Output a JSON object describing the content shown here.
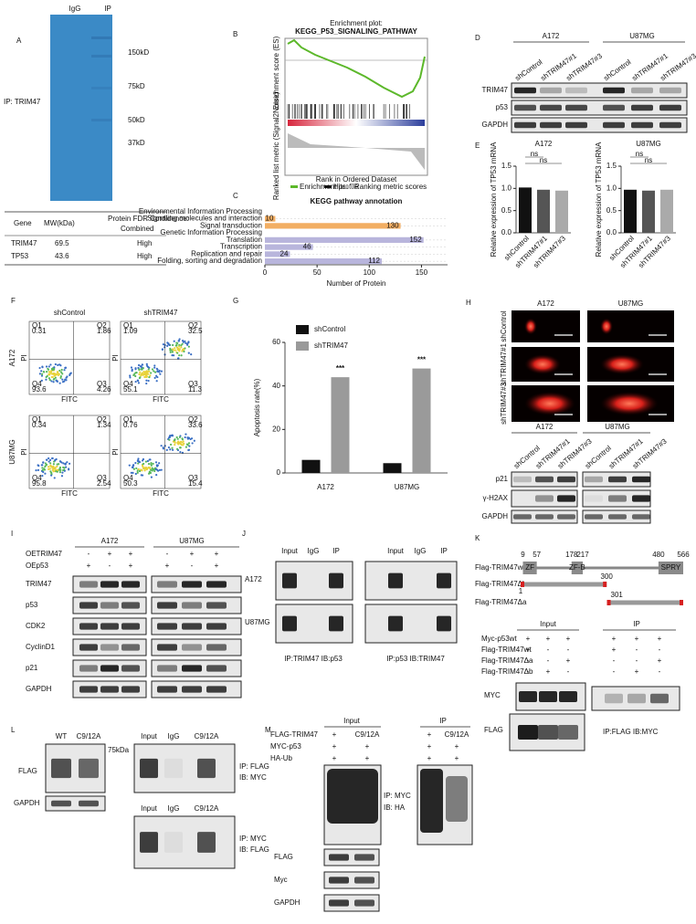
{
  "figure_labels": [
    "A",
    "B",
    "C",
    "D",
    "E",
    "F",
    "G",
    "H",
    "I",
    "J",
    "K",
    "L",
    "M"
  ],
  "panel_a": {
    "lanes": [
      "IgG",
      "IP"
    ],
    "side_label": "IP: TRIM47",
    "markers": [
      "150kD",
      "75kD",
      "50kD",
      "37kD"
    ],
    "table": {
      "header": [
        "Gene",
        "MW(kDa)",
        "Protein FDR Confidence:",
        "Combined"
      ],
      "rows": [
        [
          "TRIM47",
          "69.5",
          "High"
        ],
        [
          "TP53",
          "43.6",
          "High"
        ]
      ]
    }
  },
  "panel_b": {
    "title": [
      "Enrichment plot:",
      "KEGG_P53_SIGNALING_PATHWAY"
    ],
    "y_label_top": "Enrichment score (ES)",
    "y_label_bottom": "Ranked list metric (Signal2Noise)",
    "x_label": "Rank in Ordered Dataset",
    "legend": [
      "Enrichment profile",
      "Hits",
      "Ranking metric scores"
    ]
  },
  "panel_d": {
    "groups": [
      "A172",
      "U87MG"
    ],
    "lanes": [
      "shControl",
      "shTRIM47#1",
      "shTRIM47#3",
      "shControl",
      "shTRIM47#1",
      "shTRIM47#3"
    ],
    "rows": [
      "TRIM47",
      "p53",
      "GAPDH"
    ]
  },
  "panel_f": {
    "columns": [
      "shControl",
      "shTRIM47"
    ],
    "rows": [
      "A172",
      "U87MG"
    ],
    "x_label": "FITC",
    "y_label": "PI",
    "quadrant_names": [
      "Q1",
      "Q2",
      "Q3",
      "Q4"
    ],
    "plots": [
      [
        [
          "0.31",
          "1.86",
          "4.26",
          "93.6"
        ],
        [
          "1.09",
          "32.5",
          "11.3",
          "55.1"
        ]
      ],
      [
        [
          "0.34",
          "1.34",
          "2.54",
          "95.8"
        ],
        [
          "0.76",
          "33.6",
          "15.4",
          "50.3"
        ]
      ]
    ]
  },
  "panel_h": {
    "columns": [
      "A172",
      "U87MG"
    ],
    "rows": [
      "shControl",
      "shTRIM47#1",
      "shTRIM47#3"
    ],
    "groups": [
      "A172",
      "U87MG"
    ],
    "lanes": [
      "shControl",
      "shTRIM47#1",
      "shTRIM47#3",
      "shControl",
      "shTRIM47#1",
      "shTRIM47#3"
    ],
    "blot_rows": [
      "p21",
      "γ-H2AX",
      "GAPDH"
    ]
  },
  "panel_i": {
    "groups": [
      "A172",
      "U87MG"
    ],
    "conditions": [
      {
        "name": "OETRIM47",
        "signs": [
          "-",
          "+",
          "+",
          "-",
          "+",
          "+"
        ]
      },
      {
        "name": "OEp53",
        "signs": [
          "+",
          "-",
          "+",
          "+",
          "-",
          "+"
        ]
      }
    ],
    "rows": [
      "TRIM47",
      "p53",
      "CDK2",
      "CyclinD1",
      "p21",
      "GAPDH"
    ]
  },
  "panel_j": {
    "lanes": [
      "Input",
      "IgG",
      "IP"
    ],
    "rows": [
      "A172",
      "U87MG"
    ],
    "captions": [
      "IP:TRIM47 IB:p53",
      "IP:p53 IB:TRIM47"
    ]
  },
  "panel_k": {
    "constructs": [
      "Flag-TRIM47wt",
      "Flag-TRIM47Δb",
      "Flag-TRIM47Δa"
    ],
    "domains": [
      "ZF",
      "ZF-B",
      "SPRY"
    ],
    "positions": [
      9,
      57,
      178,
      217,
      480,
      566
    ],
    "db_positions": [
      1,
      300
    ],
    "da_positions": [
      301
    ],
    "groups": [
      "Input",
      "IP"
    ],
    "conditions": [
      {
        "name": "Myc-p53wt",
        "signs": [
          "+",
          "+",
          "+",
          "+",
          "+",
          "+"
        ]
      },
      {
        "name": "Flag-TRIM47wt",
        "signs": [
          "+",
          "-",
          "-",
          "+",
          "-",
          "-"
        ]
      },
      {
        "name": "Flag-TRIM47Δa",
        "signs": [
          "-",
          "-",
          "+",
          "-",
          "-",
          "+"
        ]
      },
      {
        "name": "Flag-TRIM47Δb",
        "signs": [
          "-",
          "+",
          "-",
          "-",
          "+",
          "-"
        ]
      }
    ],
    "blot_rows": [
      "MYC",
      "FLAG"
    ],
    "caption": "IP:FLAG IB:MYC"
  },
  "panel_l": {
    "lanes": [
      "WT",
      "C9/12A"
    ],
    "rows": [
      "FLAG",
      "GAPDH"
    ],
    "marker": "75kDa",
    "ip_lanes": [
      "Input",
      "IgG",
      "C9/12A"
    ],
    "ip_captions": [
      [
        "IP: FLAG",
        "IB: MYC"
      ],
      [
        "IP: MYC",
        "IB: FLAG"
      ]
    ]
  },
  "panel_m": {
    "groups": [
      "Input",
      "IP"
    ],
    "conditions": [
      {
        "name": "FLAG-TRIM47",
        "signs": [
          "+",
          "C9/12A",
          "+",
          "C9/12A"
        ]
      },
      {
        "name": "MYC-p53",
        "signs": [
          "+",
          "+",
          "+",
          "+"
        ]
      },
      {
        "name": "HA-Ub",
        "signs": [
          "+",
          "+",
          "+",
          "+"
        ]
      }
    ],
    "caption": [
      "IP: MYC",
      "IB: HA"
    ],
    "blot_rows": [
      "FLAG",
      "Myc",
      "GAPDH"
    ]
  },
  "chart_data": [
    {
      "type": "hbar",
      "title": "KEGG pathway annotation",
      "x_label": "Number of Protein",
      "xlim": [
        0,
        175
      ],
      "xticks": [
        0,
        50,
        100,
        150
      ],
      "groups": [
        {
          "name": "Environmental Information Processing",
          "color": "#f2ae63",
          "categories": [
            "Signaling molecules and interaction",
            "Signal transduction"
          ],
          "values": [
            10,
            130
          ]
        },
        {
          "name": "Genetic Information Processing",
          "color": "#b8b5dc",
          "categories": [
            "Translation",
            "Transcription",
            "Replication and repair",
            "Folding, sorting and degradation"
          ],
          "values": [
            152,
            46,
            24,
            112
          ]
        }
      ]
    },
    {
      "type": "bar",
      "title": "A172",
      "categories": [
        "shControl",
        "shTRIM47#1",
        "shTRIM47#3"
      ],
      "values": [
        1.02,
        0.97,
        0.95
      ],
      "colors": [
        "#111111",
        "#555555",
        "#aaaaaa"
      ],
      "y_label": "Relative expression of TP53 mRNA",
      "ylim": [
        0,
        1.5
      ],
      "yticks": [
        {
          "value": 0,
          "label": "0.0"
        },
        0.5,
        {
          "value": 1,
          "label": "1.0"
        },
        1.5
      ],
      "annotations": [
        "ns",
        "ns"
      ]
    },
    {
      "type": "bar",
      "title": "U87MG",
      "categories": [
        "shControl",
        "shTRIM47#1",
        "shTRIM47#3"
      ],
      "values": [
        0.97,
        0.95,
        0.97
      ],
      "colors": [
        "#111111",
        "#555555",
        "#aaaaaa"
      ],
      "y_label": "Relative expression of TP53 mRNA",
      "ylim": [
        0,
        1.5
      ],
      "yticks": [
        {
          "value": 0,
          "label": "0.0"
        },
        0.5,
        {
          "value": 1,
          "label": "1.0"
        },
        1.5
      ],
      "annotations": [
        "ns",
        "ns"
      ]
    },
    {
      "type": "grouped_bar",
      "categories": [
        "A172",
        "U87MG"
      ],
      "series": [
        {
          "name": "shControl",
          "color": "#111111",
          "values": [
            6,
            4.5
          ]
        },
        {
          "name": "shTRIM47",
          "color": "#9a9a9a",
          "values": [
            44,
            48
          ]
        }
      ],
      "y_label": "Apoptosis rate(%)",
      "ylim": [
        0,
        60
      ],
      "yticks": [
        0,
        20,
        40,
        60
      ],
      "annotations": [
        "***",
        "***"
      ],
      "legend": "top-left"
    }
  ]
}
